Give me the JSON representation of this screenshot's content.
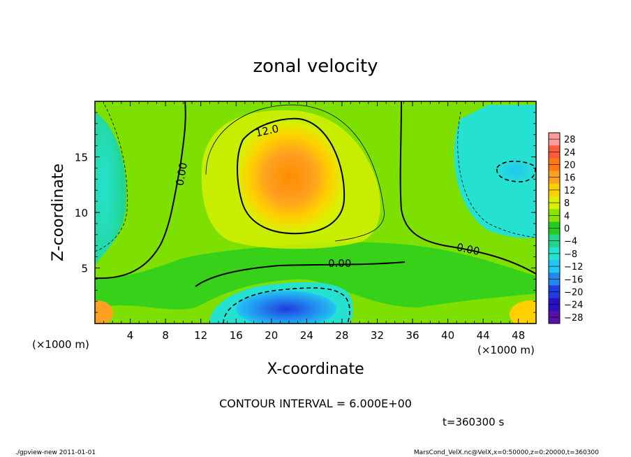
{
  "chart_data": {
    "type": "heatmap",
    "title": "zonal velocity",
    "xlabel": "X-coordinate",
    "ylabel": "Z-coordinate",
    "x_unit_note_left": "(×1000 m)",
    "x_unit_note_right": "(×1000 m)",
    "x_ticks": [
      "4",
      "8",
      "12",
      "16",
      "20",
      "24",
      "28",
      "32",
      "36",
      "40",
      "44",
      "48"
    ],
    "y_ticks": [
      "5",
      "10",
      "15"
    ],
    "xlim": [
      0,
      50
    ],
    "ylim": [
      0,
      20
    ],
    "contour_interval_text": "CONTOUR INTERVAL = 6.000E+00",
    "time_text": "t=360300 s",
    "contour_labels": [
      "12.0",
      "0.00",
      "0.00",
      "0.00"
    ],
    "colorbar": {
      "labels": [
        "28",
        "24",
        "20",
        "16",
        "12",
        "8",
        "4",
        "0",
        "−4",
        "−8",
        "−12",
        "−16",
        "−20",
        "−24",
        "−28"
      ],
      "colors": [
        "#ff9a9a",
        "#ff5a3c",
        "#ff7a10",
        "#ffa020",
        "#ffd000",
        "#d9f000",
        "#88e400",
        "#22cc22",
        "#22d48c",
        "#25e2d0",
        "#22c6f2",
        "#2288ee",
        "#1e3ce0",
        "#2a10c0",
        "#5a10a8"
      ]
    },
    "features": [
      {
        "type": "positive_core",
        "center_x": 22,
        "center_z": 12.5,
        "approx_max": 18
      },
      {
        "type": "negative_core",
        "center_x": 22,
        "center_z": 1.5,
        "approx_min": -15
      },
      {
        "type": "negative_region",
        "center_x": 46,
        "center_z": 14,
        "approx_min": -9
      },
      {
        "type": "negative_region",
        "center_x": 1,
        "center_z": 12,
        "approx_min": -7
      }
    ]
  },
  "footer": {
    "left": "./gpview-new  2011-01-01",
    "right": "MarsCond_VelX.nc@VelX,x=0:50000,z=0:20000,t=360300"
  }
}
